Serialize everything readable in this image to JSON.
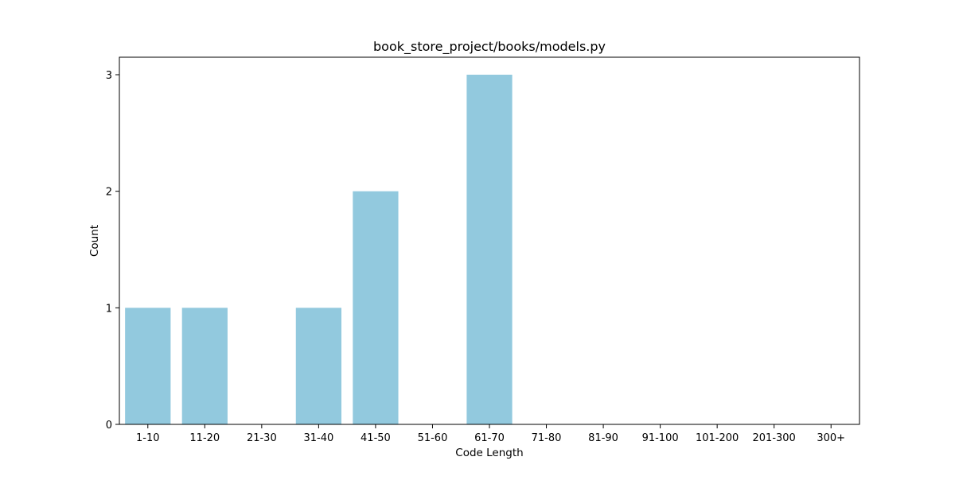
{
  "chart_data": {
    "type": "bar",
    "title": "book_store_project/books/models.py",
    "xlabel": "Code Length",
    "ylabel": "Count",
    "categories": [
      "1-10",
      "11-20",
      "21-30",
      "31-40",
      "41-50",
      "51-60",
      "61-70",
      "71-80",
      "81-90",
      "91-100",
      "101-200",
      "201-300",
      "300+"
    ],
    "values": [
      1,
      1,
      0,
      1,
      2,
      0,
      3,
      0,
      0,
      0,
      0,
      0,
      0
    ],
    "ylim": [
      0,
      3.15
    ],
    "yticks": [
      0,
      1,
      2,
      3
    ],
    "grid": false,
    "legend": "none",
    "bar_color": "#92c9de",
    "axis_color": "#000000"
  }
}
